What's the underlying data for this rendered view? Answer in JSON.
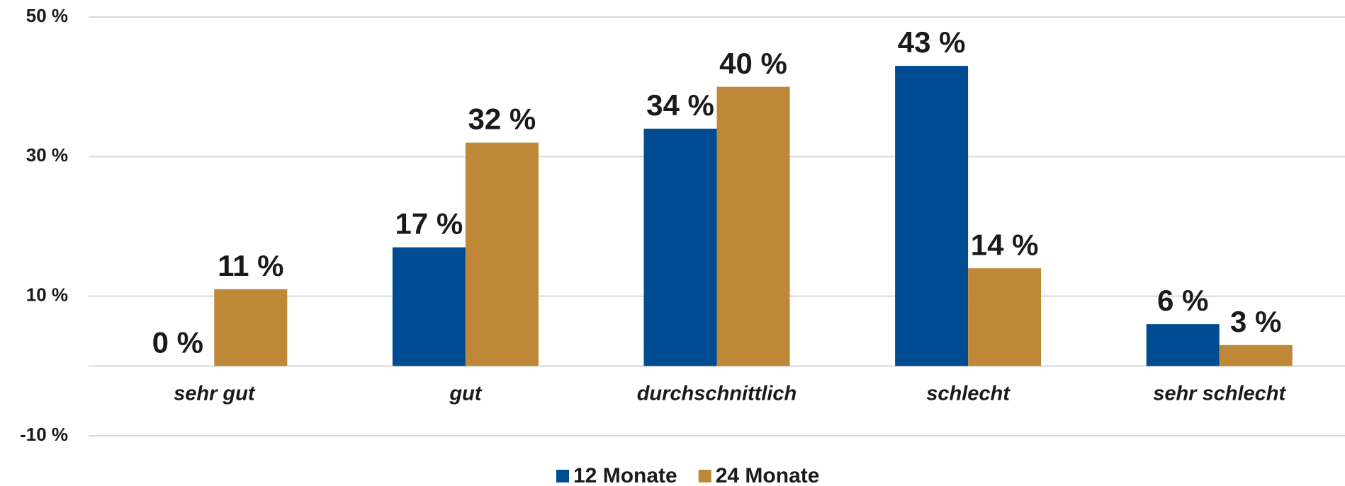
{
  "chart_data": {
    "type": "bar",
    "categories": [
      "sehr gut",
      "gut",
      "durchschnittlich",
      "schlecht",
      "sehr schlecht"
    ],
    "series": [
      {
        "name": "12 Monate",
        "color": "#004c93",
        "values": [
          0,
          17,
          34,
          43,
          6
        ],
        "value_labels": [
          "0 %",
          "17 %",
          "34 %",
          "43 %",
          "6 %"
        ]
      },
      {
        "name": "24 Monate",
        "color": "#be8838",
        "values": [
          11,
          32,
          40,
          14,
          3
        ],
        "value_labels": [
          "11 %",
          "32 %",
          "40 %",
          "14 %",
          "3 %"
        ]
      }
    ],
    "ylim": [
      -10,
      50
    ],
    "yticks": [
      {
        "value": -10,
        "label": "-10 %"
      },
      {
        "value": 10,
        "label": "10 %"
      },
      {
        "value": 30,
        "label": "30 %"
      },
      {
        "value": 50,
        "label": "50 %"
      }
    ],
    "grid": true
  }
}
